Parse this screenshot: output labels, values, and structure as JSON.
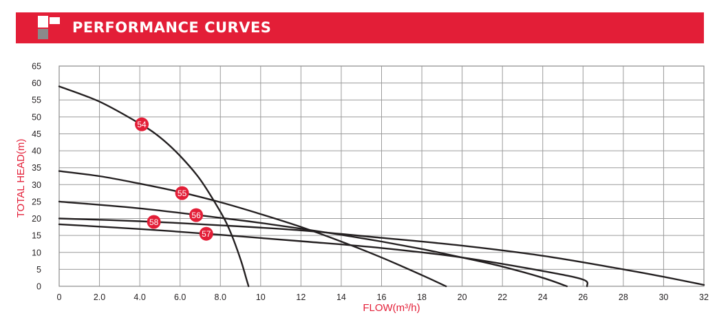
{
  "header": {
    "title": "PERFORMANCE CURVES",
    "bar_color": "#e31e37"
  },
  "chart_data": {
    "type": "line",
    "title": "",
    "xlabel": "FLOW(m³/h)",
    "ylabel": "TOTAL HEAD(m)",
    "label_color": "#e31e37",
    "xlim": [
      0,
      32
    ],
    "ylim": [
      0,
      65
    ],
    "grid": true,
    "x_ticks": [
      0,
      2,
      4,
      6,
      8,
      10,
      12,
      14,
      16,
      18,
      20,
      22,
      24,
      26,
      28,
      30,
      32
    ],
    "x_tick_labels": [
      "0",
      "2.0",
      "4.0",
      "6.0",
      "8.0",
      "10",
      "12",
      "14",
      "16",
      "18",
      "20",
      "22",
      "24",
      "26",
      "28",
      "30",
      "32"
    ],
    "y_ticks": [
      0,
      5,
      10,
      15,
      20,
      25,
      30,
      35,
      40,
      45,
      50,
      55,
      60,
      65
    ],
    "y_tick_labels": [
      "0",
      "5",
      "10",
      "15",
      "20",
      "25",
      "30",
      "35",
      "40",
      "45",
      "50",
      "55",
      "60",
      "65"
    ],
    "series": [
      {
        "name": "54",
        "label_point": [
          4.1,
          47.8
        ],
        "points": [
          [
            0,
            59
          ],
          [
            2,
            54.5
          ],
          [
            4,
            48
          ],
          [
            5,
            44
          ],
          [
            6,
            38.5
          ],
          [
            7,
            31.5
          ],
          [
            8,
            22
          ],
          [
            8.5,
            16
          ],
          [
            9,
            8
          ],
          [
            9.3,
            2
          ],
          [
            9.4,
            0
          ]
        ]
      },
      {
        "name": "55",
        "label_point": [
          6.1,
          27.5
        ],
        "points": [
          [
            0,
            34
          ],
          [
            2,
            32.5
          ],
          [
            4,
            30.3
          ],
          [
            6,
            27.8
          ],
          [
            8,
            24.8
          ],
          [
            10,
            21.3
          ],
          [
            12,
            17.5
          ],
          [
            14,
            13.2
          ],
          [
            16,
            8.5
          ],
          [
            18,
            3.3
          ],
          [
            19.2,
            0
          ]
        ]
      },
      {
        "name": "56",
        "label_point": [
          6.8,
          21
        ],
        "points": [
          [
            0,
            25
          ],
          [
            4,
            23
          ],
          [
            8,
            20.2
          ],
          [
            10,
            18.7
          ],
          [
            12,
            17
          ],
          [
            14,
            15.2
          ],
          [
            16,
            13.2
          ],
          [
            18,
            11
          ],
          [
            20,
            8.5
          ],
          [
            22,
            5.8
          ],
          [
            24,
            2.5
          ],
          [
            25.2,
            0
          ]
        ]
      },
      {
        "name": "57",
        "label_point": [
          7.3,
          15.5
        ],
        "points": [
          [
            0,
            18.3
          ],
          [
            4,
            16.9
          ],
          [
            8,
            15.2
          ],
          [
            12,
            13.3
          ],
          [
            16,
            11.3
          ],
          [
            20,
            8.5
          ],
          [
            24,
            4.5
          ],
          [
            26,
            2
          ],
          [
            26.2,
            0
          ]
        ]
      },
      {
        "name": "58",
        "label_point": [
          4.7,
          19
        ],
        "points": [
          [
            0,
            20
          ],
          [
            4,
            19.2
          ],
          [
            8,
            18
          ],
          [
            12,
            16.5
          ],
          [
            16,
            14.3
          ],
          [
            20,
            12
          ],
          [
            24,
            9
          ],
          [
            28,
            5
          ],
          [
            30,
            2.8
          ],
          [
            32,
            0.4
          ]
        ]
      }
    ],
    "marker_color": "#e31e37",
    "line_color": "#231f20"
  }
}
